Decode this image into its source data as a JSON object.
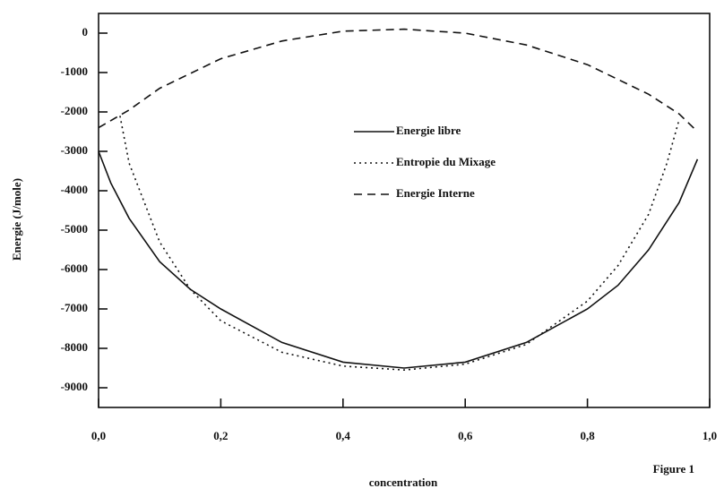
{
  "chart_data": {
    "type": "line",
    "xlabel": "concentration",
    "ylabel": "Energie (J/mole)",
    "annotation": "Figure 1",
    "xlim": [
      0,
      1
    ],
    "ylim": [
      -9500,
      500
    ],
    "xticks": [
      {
        "value": 0,
        "label": "0,0"
      },
      {
        "value": 0.2,
        "label": "0,2"
      },
      {
        "value": 0.4,
        "label": "0,4"
      },
      {
        "value": 0.6,
        "label": "0,6"
      },
      {
        "value": 0.8,
        "label": "0,8"
      },
      {
        "value": 1,
        "label": "1,0"
      }
    ],
    "yticks": [
      0,
      -1000,
      -2000,
      -3000,
      -4000,
      -5000,
      -6000,
      -7000,
      -8000,
      -9000
    ],
    "series": [
      {
        "name": "Energie libre",
        "color": "#111111",
        "dash": "solid",
        "x": [
          0,
          0.02,
          0.05,
          0.1,
          0.15,
          0.2,
          0.3,
          0.4,
          0.5,
          0.6,
          0.7,
          0.8,
          0.85,
          0.9,
          0.95,
          0.98
        ],
        "values": [
          -3000,
          -3800,
          -4700,
          -5800,
          -6500,
          -7000,
          -7850,
          -8350,
          -8500,
          -8350,
          -7850,
          -7000,
          -6400,
          -5500,
          -4300,
          -3200
        ]
      },
      {
        "name": "Entropie du Mixage",
        "color": "#111111",
        "dash": "dotted",
        "x": [
          0.035,
          0.05,
          0.1,
          0.15,
          0.2,
          0.3,
          0.4,
          0.5,
          0.6,
          0.7,
          0.8,
          0.85,
          0.9,
          0.93,
          0.95
        ],
        "values": [
          -2100,
          -3300,
          -5300,
          -6500,
          -7300,
          -8100,
          -8450,
          -8550,
          -8400,
          -7900,
          -6800,
          -5900,
          -4600,
          -3300,
          -2200
        ]
      },
      {
        "name": "Energie Interne",
        "color": "#111111",
        "dash": "dashed",
        "x": [
          0,
          0.05,
          0.1,
          0.2,
          0.3,
          0.4,
          0.5,
          0.6,
          0.7,
          0.8,
          0.9,
          0.95,
          0.98
        ],
        "values": [
          -2400,
          -1950,
          -1400,
          -650,
          -200,
          50,
          100,
          0,
          -300,
          -800,
          -1550,
          -2050,
          -2500
        ]
      }
    ]
  }
}
